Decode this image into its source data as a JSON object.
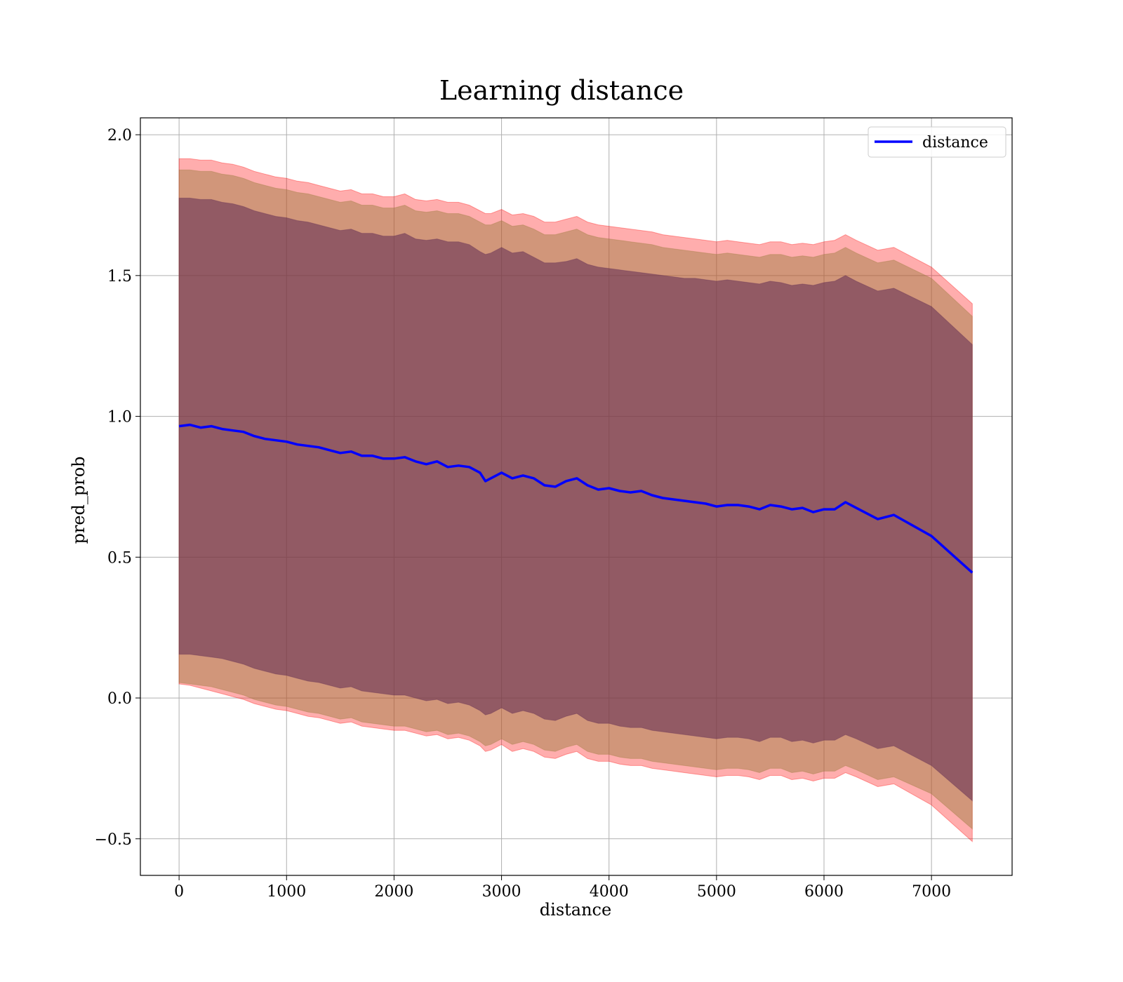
{
  "chart_data": {
    "type": "area",
    "title": "Learning distance",
    "xlabel": "distance",
    "ylabel": "pred_prob",
    "xlim": [
      -360,
      7750
    ],
    "ylim": [
      -0.63,
      2.06
    ],
    "xticks": [
      0,
      1000,
      2000,
      3000,
      4000,
      5000,
      6000,
      7000
    ],
    "yticks": [
      -0.5,
      0.0,
      0.5,
      1.0,
      1.5,
      2.0
    ],
    "ytick_labels": [
      "−0.5",
      "0.0",
      "0.5",
      "1.0",
      "1.5",
      "2.0"
    ],
    "grid": true,
    "legend": {
      "position": "top-right",
      "entries": [
        "distance"
      ]
    },
    "colors": {
      "line": "#0000ff",
      "band_outer": "#ff0000",
      "band_middle": "#9a7a3c",
      "band_inner": "#5e2a52",
      "grid": "#b0b0b0"
    },
    "x": [
      0,
      100,
      200,
      300,
      400,
      500,
      600,
      700,
      800,
      900,
      1000,
      1100,
      1200,
      1300,
      1400,
      1500,
      1600,
      1700,
      1800,
      1900,
      2000,
      2100,
      2200,
      2300,
      2400,
      2500,
      2600,
      2700,
      2800,
      2850,
      2900,
      3000,
      3100,
      3200,
      3300,
      3400,
      3500,
      3600,
      3700,
      3800,
      3900,
      4000,
      4100,
      4200,
      4300,
      4400,
      4500,
      4600,
      4700,
      4800,
      4900,
      5000,
      5100,
      5200,
      5300,
      5400,
      5500,
      5600,
      5700,
      5800,
      5900,
      6000,
      6100,
      6200,
      6300,
      6500,
      6650,
      7000,
      7380
    ],
    "series": [
      {
        "name": "distance",
        "values": [
          0.965,
          0.97,
          0.96,
          0.965,
          0.955,
          0.95,
          0.945,
          0.93,
          0.92,
          0.915,
          0.91,
          0.9,
          0.895,
          0.89,
          0.88,
          0.87,
          0.875,
          0.86,
          0.86,
          0.85,
          0.85,
          0.855,
          0.84,
          0.83,
          0.84,
          0.82,
          0.825,
          0.82,
          0.8,
          0.77,
          0.78,
          0.8,
          0.78,
          0.79,
          0.78,
          0.755,
          0.75,
          0.77,
          0.78,
          0.755,
          0.74,
          0.745,
          0.735,
          0.73,
          0.735,
          0.72,
          0.71,
          0.705,
          0.7,
          0.695,
          0.69,
          0.68,
          0.685,
          0.685,
          0.68,
          0.67,
          0.685,
          0.68,
          0.67,
          0.675,
          0.66,
          0.67,
          0.67,
          0.695,
          0.675,
          0.635,
          0.65,
          0.575,
          0.445
        ]
      },
      {
        "name": "",
        "upper": [
          1.915,
          1.915,
          1.91,
          1.91,
          1.9,
          1.895,
          1.885,
          1.87,
          1.86,
          1.85,
          1.845,
          1.835,
          1.83,
          1.82,
          1.81,
          1.8,
          1.805,
          1.79,
          1.79,
          1.78,
          1.78,
          1.79,
          1.77,
          1.765,
          1.77,
          1.76,
          1.76,
          1.75,
          1.73,
          1.72,
          1.72,
          1.735,
          1.715,
          1.72,
          1.71,
          1.69,
          1.69,
          1.7,
          1.71,
          1.69,
          1.68,
          1.675,
          1.67,
          1.665,
          1.66,
          1.655,
          1.645,
          1.64,
          1.635,
          1.63,
          1.625,
          1.62,
          1.625,
          1.62,
          1.615,
          1.61,
          1.62,
          1.62,
          1.61,
          1.615,
          1.61,
          1.62,
          1.625,
          1.645,
          1.625,
          1.59,
          1.6,
          1.53,
          1.4
        ],
        "lower": [
          0.05,
          0.045,
          0.035,
          0.025,
          0.015,
          0.005,
          -0.005,
          -0.02,
          -0.03,
          -0.04,
          -0.045,
          -0.055,
          -0.065,
          -0.07,
          -0.08,
          -0.09,
          -0.085,
          -0.1,
          -0.105,
          -0.11,
          -0.115,
          -0.115,
          -0.125,
          -0.135,
          -0.13,
          -0.145,
          -0.14,
          -0.15,
          -0.17,
          -0.19,
          -0.185,
          -0.165,
          -0.19,
          -0.18,
          -0.19,
          -0.21,
          -0.215,
          -0.2,
          -0.19,
          -0.215,
          -0.225,
          -0.225,
          -0.235,
          -0.24,
          -0.24,
          -0.25,
          -0.255,
          -0.26,
          -0.265,
          -0.27,
          -0.275,
          -0.28,
          -0.275,
          -0.275,
          -0.28,
          -0.29,
          -0.275,
          -0.275,
          -0.29,
          -0.285,
          -0.295,
          -0.285,
          -0.285,
          -0.265,
          -0.28,
          -0.315,
          -0.305,
          -0.38,
          -0.51
        ]
      },
      {
        "name": "",
        "upper": [
          1.875,
          1.875,
          1.87,
          1.87,
          1.86,
          1.855,
          1.845,
          1.83,
          1.82,
          1.81,
          1.805,
          1.795,
          1.79,
          1.78,
          1.77,
          1.76,
          1.765,
          1.75,
          1.75,
          1.74,
          1.74,
          1.75,
          1.73,
          1.725,
          1.73,
          1.72,
          1.72,
          1.71,
          1.69,
          1.68,
          1.68,
          1.695,
          1.675,
          1.68,
          1.665,
          1.645,
          1.645,
          1.655,
          1.665,
          1.645,
          1.635,
          1.63,
          1.625,
          1.62,
          1.615,
          1.61,
          1.6,
          1.595,
          1.59,
          1.585,
          1.58,
          1.575,
          1.58,
          1.575,
          1.57,
          1.565,
          1.575,
          1.575,
          1.565,
          1.57,
          1.565,
          1.575,
          1.58,
          1.6,
          1.58,
          1.545,
          1.555,
          1.49,
          1.355
        ],
        "lower": [
          0.055,
          0.05,
          0.045,
          0.04,
          0.03,
          0.02,
          0.01,
          -0.005,
          -0.015,
          -0.025,
          -0.03,
          -0.04,
          -0.05,
          -0.055,
          -0.065,
          -0.075,
          -0.07,
          -0.085,
          -0.09,
          -0.095,
          -0.1,
          -0.1,
          -0.11,
          -0.12,
          -0.115,
          -0.13,
          -0.125,
          -0.135,
          -0.155,
          -0.17,
          -0.165,
          -0.145,
          -0.165,
          -0.155,
          -0.165,
          -0.185,
          -0.19,
          -0.175,
          -0.165,
          -0.19,
          -0.2,
          -0.2,
          -0.21,
          -0.215,
          -0.215,
          -0.225,
          -0.23,
          -0.235,
          -0.24,
          -0.245,
          -0.25,
          -0.255,
          -0.25,
          -0.25,
          -0.255,
          -0.265,
          -0.25,
          -0.25,
          -0.265,
          -0.26,
          -0.27,
          -0.26,
          -0.26,
          -0.24,
          -0.255,
          -0.29,
          -0.28,
          -0.34,
          -0.465
        ]
      },
      {
        "name": "",
        "upper": [
          1.775,
          1.775,
          1.77,
          1.77,
          1.76,
          1.755,
          1.745,
          1.73,
          1.72,
          1.71,
          1.705,
          1.695,
          1.69,
          1.68,
          1.67,
          1.66,
          1.665,
          1.65,
          1.65,
          1.64,
          1.64,
          1.65,
          1.63,
          1.625,
          1.63,
          1.62,
          1.62,
          1.61,
          1.585,
          1.575,
          1.58,
          1.6,
          1.58,
          1.585,
          1.565,
          1.545,
          1.545,
          1.55,
          1.56,
          1.54,
          1.53,
          1.525,
          1.52,
          1.515,
          1.51,
          1.505,
          1.5,
          1.495,
          1.49,
          1.49,
          1.485,
          1.48,
          1.485,
          1.48,
          1.475,
          1.47,
          1.48,
          1.475,
          1.465,
          1.47,
          1.465,
          1.475,
          1.48,
          1.5,
          1.48,
          1.445,
          1.455,
          1.39,
          1.255
        ],
        "lower": [
          0.155,
          0.155,
          0.15,
          0.145,
          0.14,
          0.13,
          0.12,
          0.105,
          0.095,
          0.085,
          0.08,
          0.07,
          0.06,
          0.055,
          0.045,
          0.035,
          0.04,
          0.025,
          0.02,
          0.015,
          0.01,
          0.01,
          0.0,
          -0.01,
          -0.005,
          -0.02,
          -0.015,
          -0.025,
          -0.045,
          -0.06,
          -0.055,
          -0.035,
          -0.055,
          -0.045,
          -0.055,
          -0.075,
          -0.08,
          -0.065,
          -0.055,
          -0.08,
          -0.09,
          -0.09,
          -0.1,
          -0.105,
          -0.105,
          -0.115,
          -0.12,
          -0.125,
          -0.13,
          -0.135,
          -0.14,
          -0.145,
          -0.14,
          -0.14,
          -0.145,
          -0.155,
          -0.14,
          -0.14,
          -0.155,
          -0.15,
          -0.16,
          -0.15,
          -0.15,
          -0.13,
          -0.145,
          -0.18,
          -0.17,
          -0.24,
          -0.365
        ]
      }
    ]
  }
}
